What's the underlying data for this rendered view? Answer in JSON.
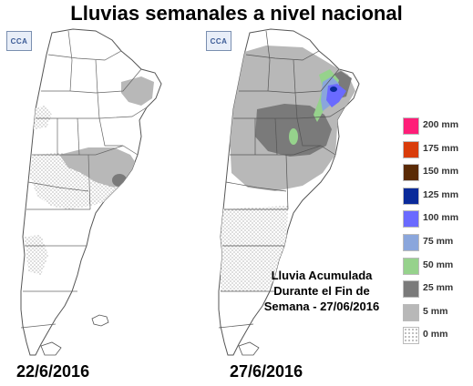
{
  "title": "Lluvias semanales a nivel nacional",
  "maps": {
    "left": {
      "date": "22/6/2016",
      "logo": "CCA"
    },
    "right": {
      "date": "27/6/2016",
      "logo": "CCA",
      "caption": [
        "Lluvia Acumulada",
        "Durante el Fin de",
        "Semana - 27/06/2016"
      ]
    }
  },
  "legend": [
    {
      "label": "200 mm",
      "color": "#ff1e78"
    },
    {
      "label": "175 mm",
      "color": "#d93c0a"
    },
    {
      "label": "150 mm",
      "color": "#5a2a05"
    },
    {
      "label": "125 mm",
      "color": "#0a2a9a"
    },
    {
      "label": "100 mm",
      "color": "#6a6aff"
    },
    {
      "label": "75 mm",
      "color": "#8aa6dc"
    },
    {
      "label": "50 mm",
      "color": "#96d28c"
    },
    {
      "label": "25 mm",
      "color": "#7a7a7a"
    },
    {
      "label": "5 mm",
      "color": "#b8b8b8"
    },
    {
      "label": "0 mm",
      "color": "dotted"
    }
  ]
}
